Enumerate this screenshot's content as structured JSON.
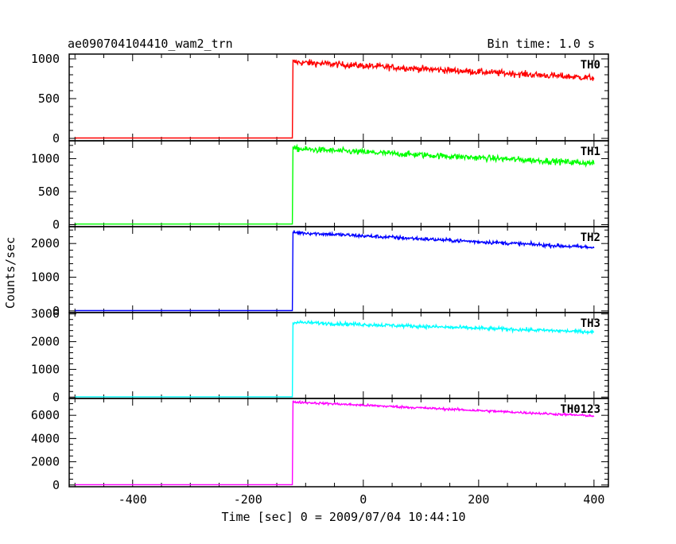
{
  "header": {
    "title": "ae090704104410_wam2_trn",
    "bin_time": "Bin time: 1.0 s"
  },
  "chart_data": {
    "type": "line",
    "xlabel": "Time [sec] 0 = 2009/07/04 10:44:10",
    "ylabel": "Counts/sec",
    "xlim": [
      -510,
      425
    ],
    "x_ticks": [
      "-400",
      "-200",
      "0",
      "200",
      "400"
    ],
    "x_tick_values": [
      -400,
      -200,
      0,
      200,
      400
    ],
    "x_minor_step": 50,
    "grid": false,
    "panels": [
      {
        "name": "TH0",
        "color": "#ff0000",
        "ylim": [
          -30,
          1060
        ],
        "y_ticks": [
          "0",
          "500",
          "1000"
        ],
        "y_tick_values": [
          0,
          500,
          1000
        ],
        "y_minor_step": 100,
        "x_range": [
          -500,
          400
        ],
        "onset": -122,
        "pre_level": 5,
        "post_start": 960,
        "post_end": 760,
        "noise": 40
      },
      {
        "name": "TH1",
        "color": "#00ff00",
        "ylim": [
          -30,
          1270
        ],
        "y_ticks": [
          "0",
          "500",
          "1000"
        ],
        "y_tick_values": [
          0,
          500,
          1000
        ],
        "y_minor_step": 100,
        "x_range": [
          -500,
          400
        ],
        "onset": -122,
        "pre_level": 10,
        "post_start": 1150,
        "post_end": 930,
        "noise": 45
      },
      {
        "name": "TH2",
        "color": "#0000ff",
        "ylim": [
          -50,
          2500
        ],
        "y_ticks": [
          "0",
          "1000",
          "2000"
        ],
        "y_tick_values": [
          0,
          1000,
          2000
        ],
        "y_minor_step": 200,
        "x_range": [
          -500,
          400
        ],
        "onset": -122,
        "pre_level": 10,
        "post_start": 2330,
        "post_end": 1880,
        "noise": 55
      },
      {
        "name": "TH3",
        "color": "#00ffff",
        "ylim": [
          -50,
          3050
        ],
        "y_ticks": [
          "0",
          "1000",
          "2000",
          "3000"
        ],
        "y_tick_values": [
          0,
          1000,
          2000,
          3000
        ],
        "y_minor_step": 200,
        "x_range": [
          -500,
          400
        ],
        "onset": -122,
        "pre_level": 10,
        "post_start": 2700,
        "post_end": 2350,
        "noise": 65
      },
      {
        "name": "TH0123",
        "color": "#ff00ff",
        "ylim": [
          -150,
          7450
        ],
        "y_ticks": [
          "0",
          "2000",
          "4000",
          "6000"
        ],
        "y_tick_values": [
          0,
          2000,
          4000,
          6000
        ],
        "y_minor_step": 500,
        "x_range": [
          -500,
          400
        ],
        "onset": -122,
        "pre_level": 30,
        "post_start": 7150,
        "post_end": 5950,
        "noise": 100
      }
    ]
  }
}
